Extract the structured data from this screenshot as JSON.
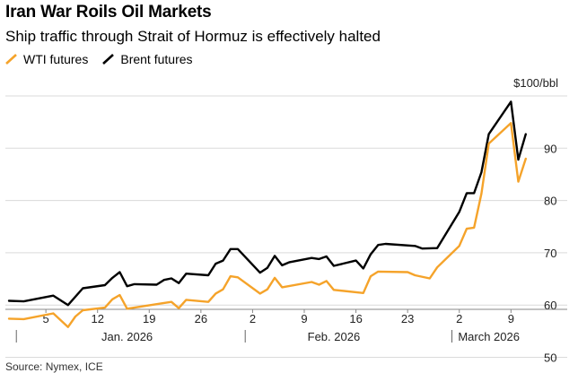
{
  "title": "Iran War Roils Oil Markets",
  "subtitle": "Ship traffic through Strait of Hormuz is effectively halted",
  "source": "Source: Nymex, ICE",
  "legend": [
    {
      "name": "WTI futures",
      "color": "#f5a32a"
    },
    {
      "name": "Brent futures",
      "color": "#000000"
    }
  ],
  "chart_data": {
    "type": "line",
    "title": "Iran War Roils Oil Markets",
    "ylabel": "$100/bbl",
    "ylim": [
      50,
      100
    ],
    "yticks": [
      {
        "value": 100,
        "label": "$100/bbl"
      },
      {
        "value": 90,
        "label": "90"
      },
      {
        "value": 80,
        "label": "80"
      },
      {
        "value": 70,
        "label": "70"
      },
      {
        "value": 60,
        "label": "60"
      },
      {
        "value": 50,
        "label": "50"
      }
    ],
    "xlim": [
      0,
      71
    ],
    "xticks": [
      {
        "day": 5,
        "label": "5"
      },
      {
        "day": 12,
        "label": "12"
      },
      {
        "day": 19,
        "label": "19"
      },
      {
        "day": 26,
        "label": "26"
      },
      {
        "day": 33,
        "label": "2"
      },
      {
        "day": 40,
        "label": "9"
      },
      {
        "day": 47,
        "label": "16"
      },
      {
        "day": 54,
        "label": "23"
      },
      {
        "day": 61,
        "label": "2"
      },
      {
        "day": 68,
        "label": "9"
      }
    ],
    "months": [
      {
        "label": "Jan. 2026",
        "start_day": 1,
        "label_day": 16
      },
      {
        "label": "Feb. 2026",
        "start_day": 32,
        "label_day": 44
      },
      {
        "label": "March 2026",
        "start_day": 60,
        "label_day": 65
      }
    ],
    "series": [
      {
        "name": "Brent futures",
        "color": "#000000",
        "points": [
          [
            0,
            60.8
          ],
          [
            2,
            60.7
          ],
          [
            6,
            61.8
          ],
          [
            8,
            60.0
          ],
          [
            10,
            63.2
          ],
          [
            13,
            63.8
          ],
          [
            14,
            65.2
          ],
          [
            15,
            66.3
          ],
          [
            16,
            63.6
          ],
          [
            17,
            64.0
          ],
          [
            20,
            63.9
          ],
          [
            21,
            64.8
          ],
          [
            22,
            65.1
          ],
          [
            23,
            64.2
          ],
          [
            24,
            66.0
          ],
          [
            27,
            65.7
          ],
          [
            28,
            67.9
          ],
          [
            29,
            68.5
          ],
          [
            30,
            70.7
          ],
          [
            31,
            70.7
          ],
          [
            34,
            66.2
          ],
          [
            35,
            67.1
          ],
          [
            36,
            69.4
          ],
          [
            37,
            67.6
          ],
          [
            38,
            68.2
          ],
          [
            41,
            69.0
          ],
          [
            42,
            68.8
          ],
          [
            43,
            69.3
          ],
          [
            44,
            67.5
          ],
          [
            47,
            68.5
          ],
          [
            48,
            67.0
          ],
          [
            49,
            69.7
          ],
          [
            50,
            71.5
          ],
          [
            51,
            71.7
          ],
          [
            55,
            71.3
          ],
          [
            56,
            70.8
          ],
          [
            58,
            70.9
          ],
          [
            61,
            77.8
          ],
          [
            62,
            81.4
          ],
          [
            63,
            81.4
          ],
          [
            64,
            85.4
          ],
          [
            65,
            92.7
          ],
          [
            68,
            98.9
          ],
          [
            69,
            87.8
          ],
          [
            70,
            92.7
          ]
        ]
      },
      {
        "name": "WTI futures",
        "color": "#f5a32a",
        "points": [
          [
            0,
            57.4
          ],
          [
            2,
            57.3
          ],
          [
            6,
            58.4
          ],
          [
            8,
            55.8
          ],
          [
            9,
            57.8
          ],
          [
            10,
            59.0
          ],
          [
            13,
            59.5
          ],
          [
            14,
            61.1
          ],
          [
            15,
            61.9
          ],
          [
            16,
            59.3
          ],
          [
            21,
            60.4
          ],
          [
            22,
            60.6
          ],
          [
            23,
            59.4
          ],
          [
            24,
            61.0
          ],
          [
            27,
            60.6
          ],
          [
            28,
            62.2
          ],
          [
            29,
            63.0
          ],
          [
            30,
            65.5
          ],
          [
            31,
            65.3
          ],
          [
            34,
            62.2
          ],
          [
            35,
            63.0
          ],
          [
            36,
            65.2
          ],
          [
            37,
            63.4
          ],
          [
            41,
            64.4
          ],
          [
            42,
            63.9
          ],
          [
            43,
            64.6
          ],
          [
            44,
            62.9
          ],
          [
            48,
            62.3
          ],
          [
            49,
            65.5
          ],
          [
            50,
            66.4
          ],
          [
            54,
            66.3
          ],
          [
            55,
            65.7
          ],
          [
            57,
            65.1
          ],
          [
            58,
            67.2
          ],
          [
            61,
            71.3
          ],
          [
            62,
            74.6
          ],
          [
            63,
            74.8
          ],
          [
            64,
            81.3
          ],
          [
            65,
            90.9
          ],
          [
            68,
            94.8
          ],
          [
            69,
            83.6
          ],
          [
            70,
            88.0
          ]
        ]
      }
    ]
  }
}
